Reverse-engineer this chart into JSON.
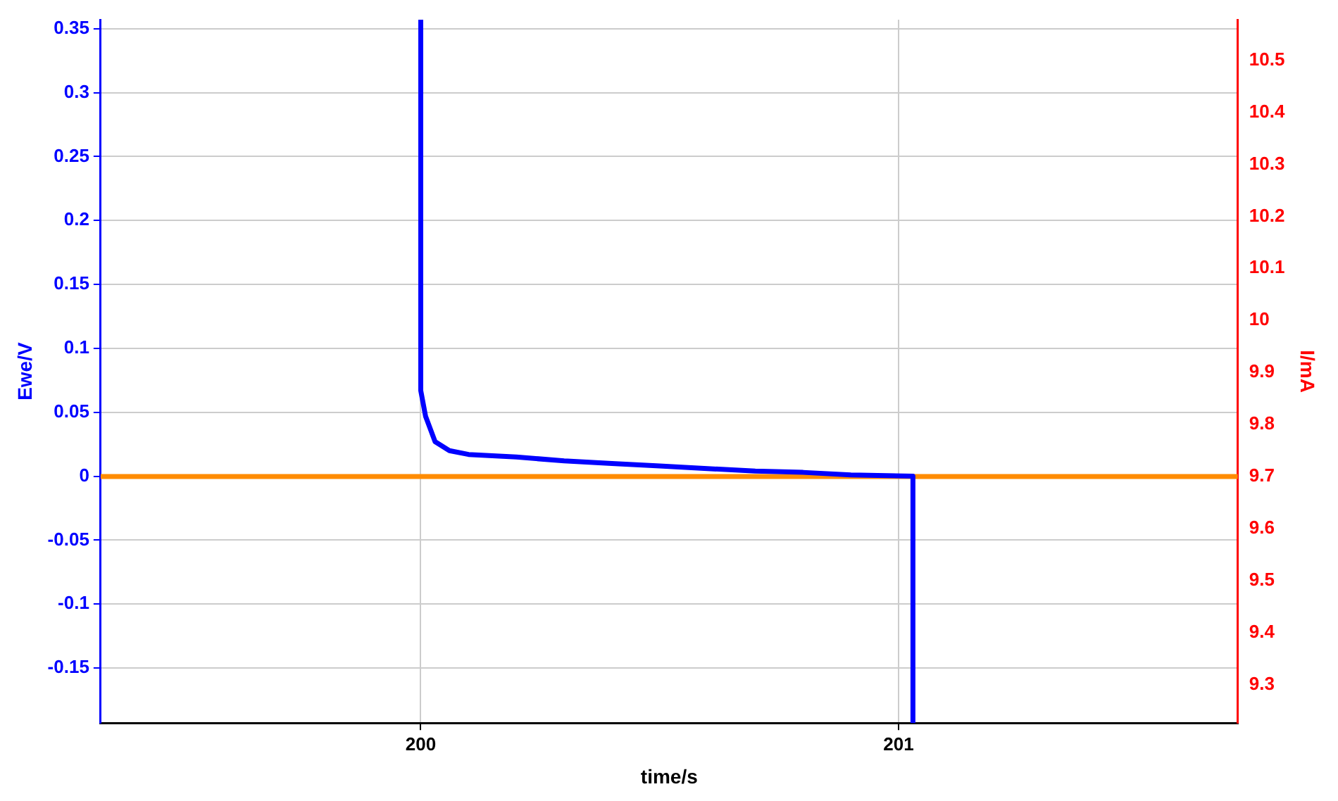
{
  "chart_data": {
    "type": "line",
    "xlabel": "time/s",
    "ylabel": "Ewe/V",
    "y2label": "I/mA",
    "series": [
      {
        "color": "#0000ff",
        "x": [
          200.0,
          200.0,
          200.01,
          200.03,
          200.06,
          200.1,
          200.2,
          200.3,
          200.4,
          200.5,
          200.6,
          200.7,
          200.8,
          200.9,
          201.03,
          201.03
        ],
        "values": [
          0.357,
          0.067,
          0.047,
          0.027,
          0.02,
          0.017,
          0.015,
          0.012,
          0.01,
          0.008,
          0.006,
          0.004,
          0.003,
          0.001,
          0,
          -0.193
        ]
      },
      {
        "color": "#ff8c00",
        "axis": "y2",
        "x": [
          199.33,
          201.71
        ],
        "values": [
          9.7,
          9.7
        ]
      }
    ],
    "xlim": [
      199.33,
      201.71
    ],
    "xticks": [
      200,
      201
    ],
    "ylim": [
      -0.193,
      0.357
    ],
    "yticks": [
      -0.15,
      -0.1,
      -0.05,
      0,
      0.05,
      0.1,
      0.15,
      0.2,
      0.25,
      0.3,
      0.35
    ],
    "y2lim": [
      9.226,
      10.578
    ],
    "y2ticks": [
      9.3,
      9.4,
      9.5,
      9.6,
      9.7,
      9.8,
      9.9,
      10,
      10.1,
      10.2,
      10.3,
      10.4,
      10.5
    ],
    "grid": true,
    "legend": false,
    "marker": "none",
    "line_style": "solid"
  }
}
